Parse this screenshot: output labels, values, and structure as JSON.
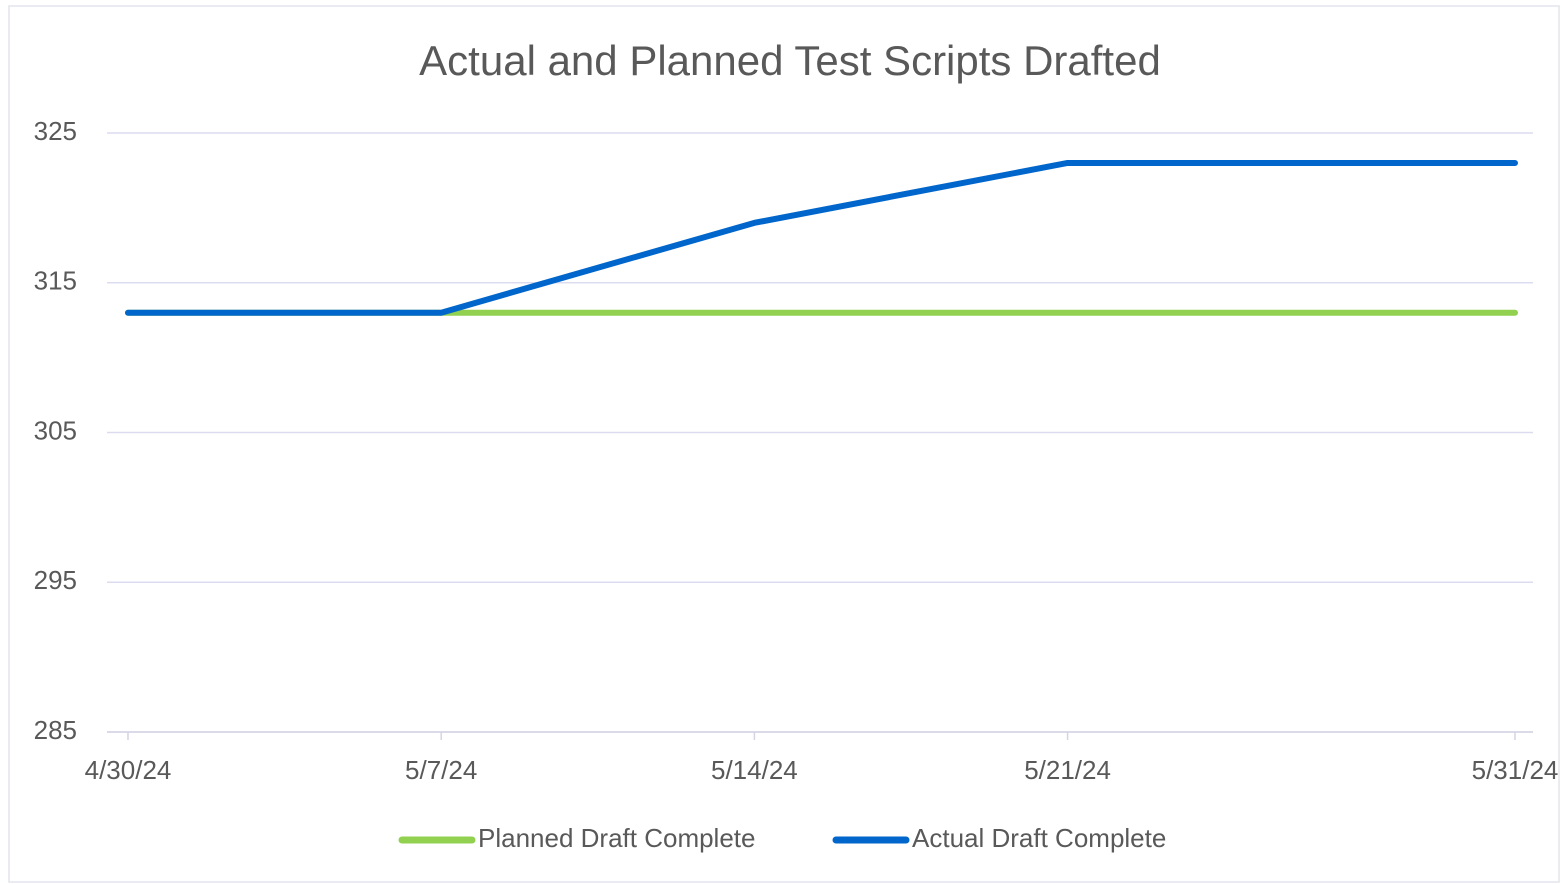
{
  "chart_data": {
    "type": "line",
    "title": "Actual and Planned Test Scripts Drafted",
    "x": [
      "4/30/24",
      "5/7/24",
      "5/14/24",
      "5/21/24",
      "5/31/24"
    ],
    "series": [
      {
        "name": "Planned Draft Complete",
        "color": "#92d050",
        "values": [
          313,
          313,
          313,
          313,
          313
        ]
      },
      {
        "name": "Actual Draft Complete",
        "color": "#0066cc",
        "values": [
          313,
          313,
          319,
          323,
          323
        ]
      }
    ],
    "ylim": [
      285,
      325
    ],
    "yticks": [
      285,
      295,
      305,
      315,
      325
    ],
    "grid": true,
    "legend": "bottom"
  }
}
